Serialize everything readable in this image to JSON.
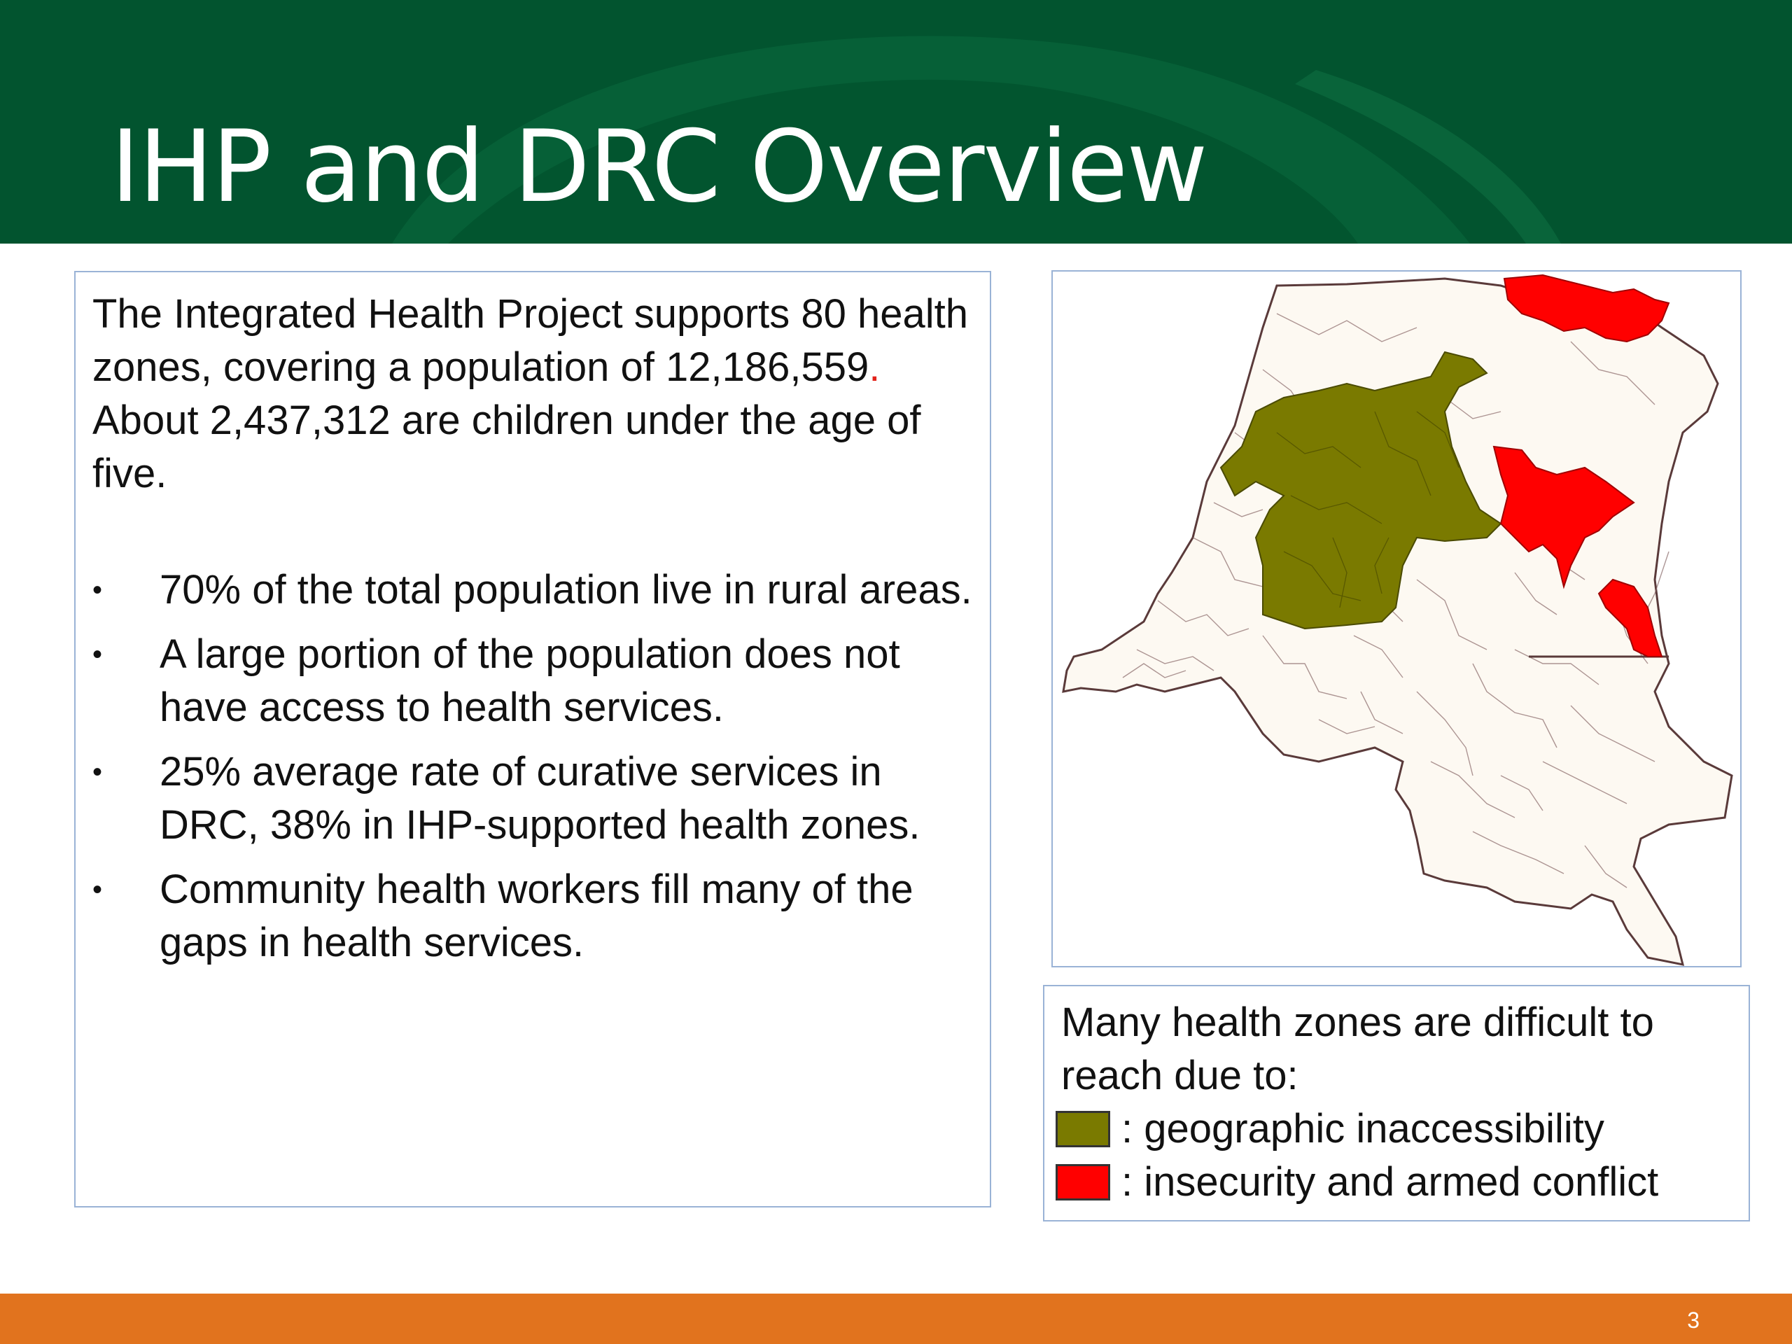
{
  "slide": {
    "title": "IHP and DRC Overview",
    "page_number": "3"
  },
  "text_panel": {
    "intro_main": "The Integrated Health Project supports 80 health zones, covering a population of 12,186,559",
    "intro_dot": ".",
    "intro_tail": " About 2,437,312 are children under the age of five.",
    "bullet_symbol": "•",
    "bullets": [
      "70%  of the total population live in rural areas.",
      "A large portion of the population does not have access to health services.",
      "25% average rate of curative services in DRC, 38% in IHP-supported health zones.",
      "Community health workers fill many of the gaps in health services."
    ]
  },
  "legend": {
    "intro": "Many health zones are difficult to reach due to:",
    "items": [
      {
        "label": ": geographic inaccessibility",
        "color": "#7a7a00"
      },
      {
        "label": ": insecurity and armed conflict",
        "color": "#ff0000"
      }
    ]
  },
  "colors": {
    "header_green": "#02542f",
    "footer_orange": "#e1731e",
    "map_fill": "#fdf9f2",
    "map_border": "#5a3a3a",
    "panel_border": "#9ab3d6"
  }
}
